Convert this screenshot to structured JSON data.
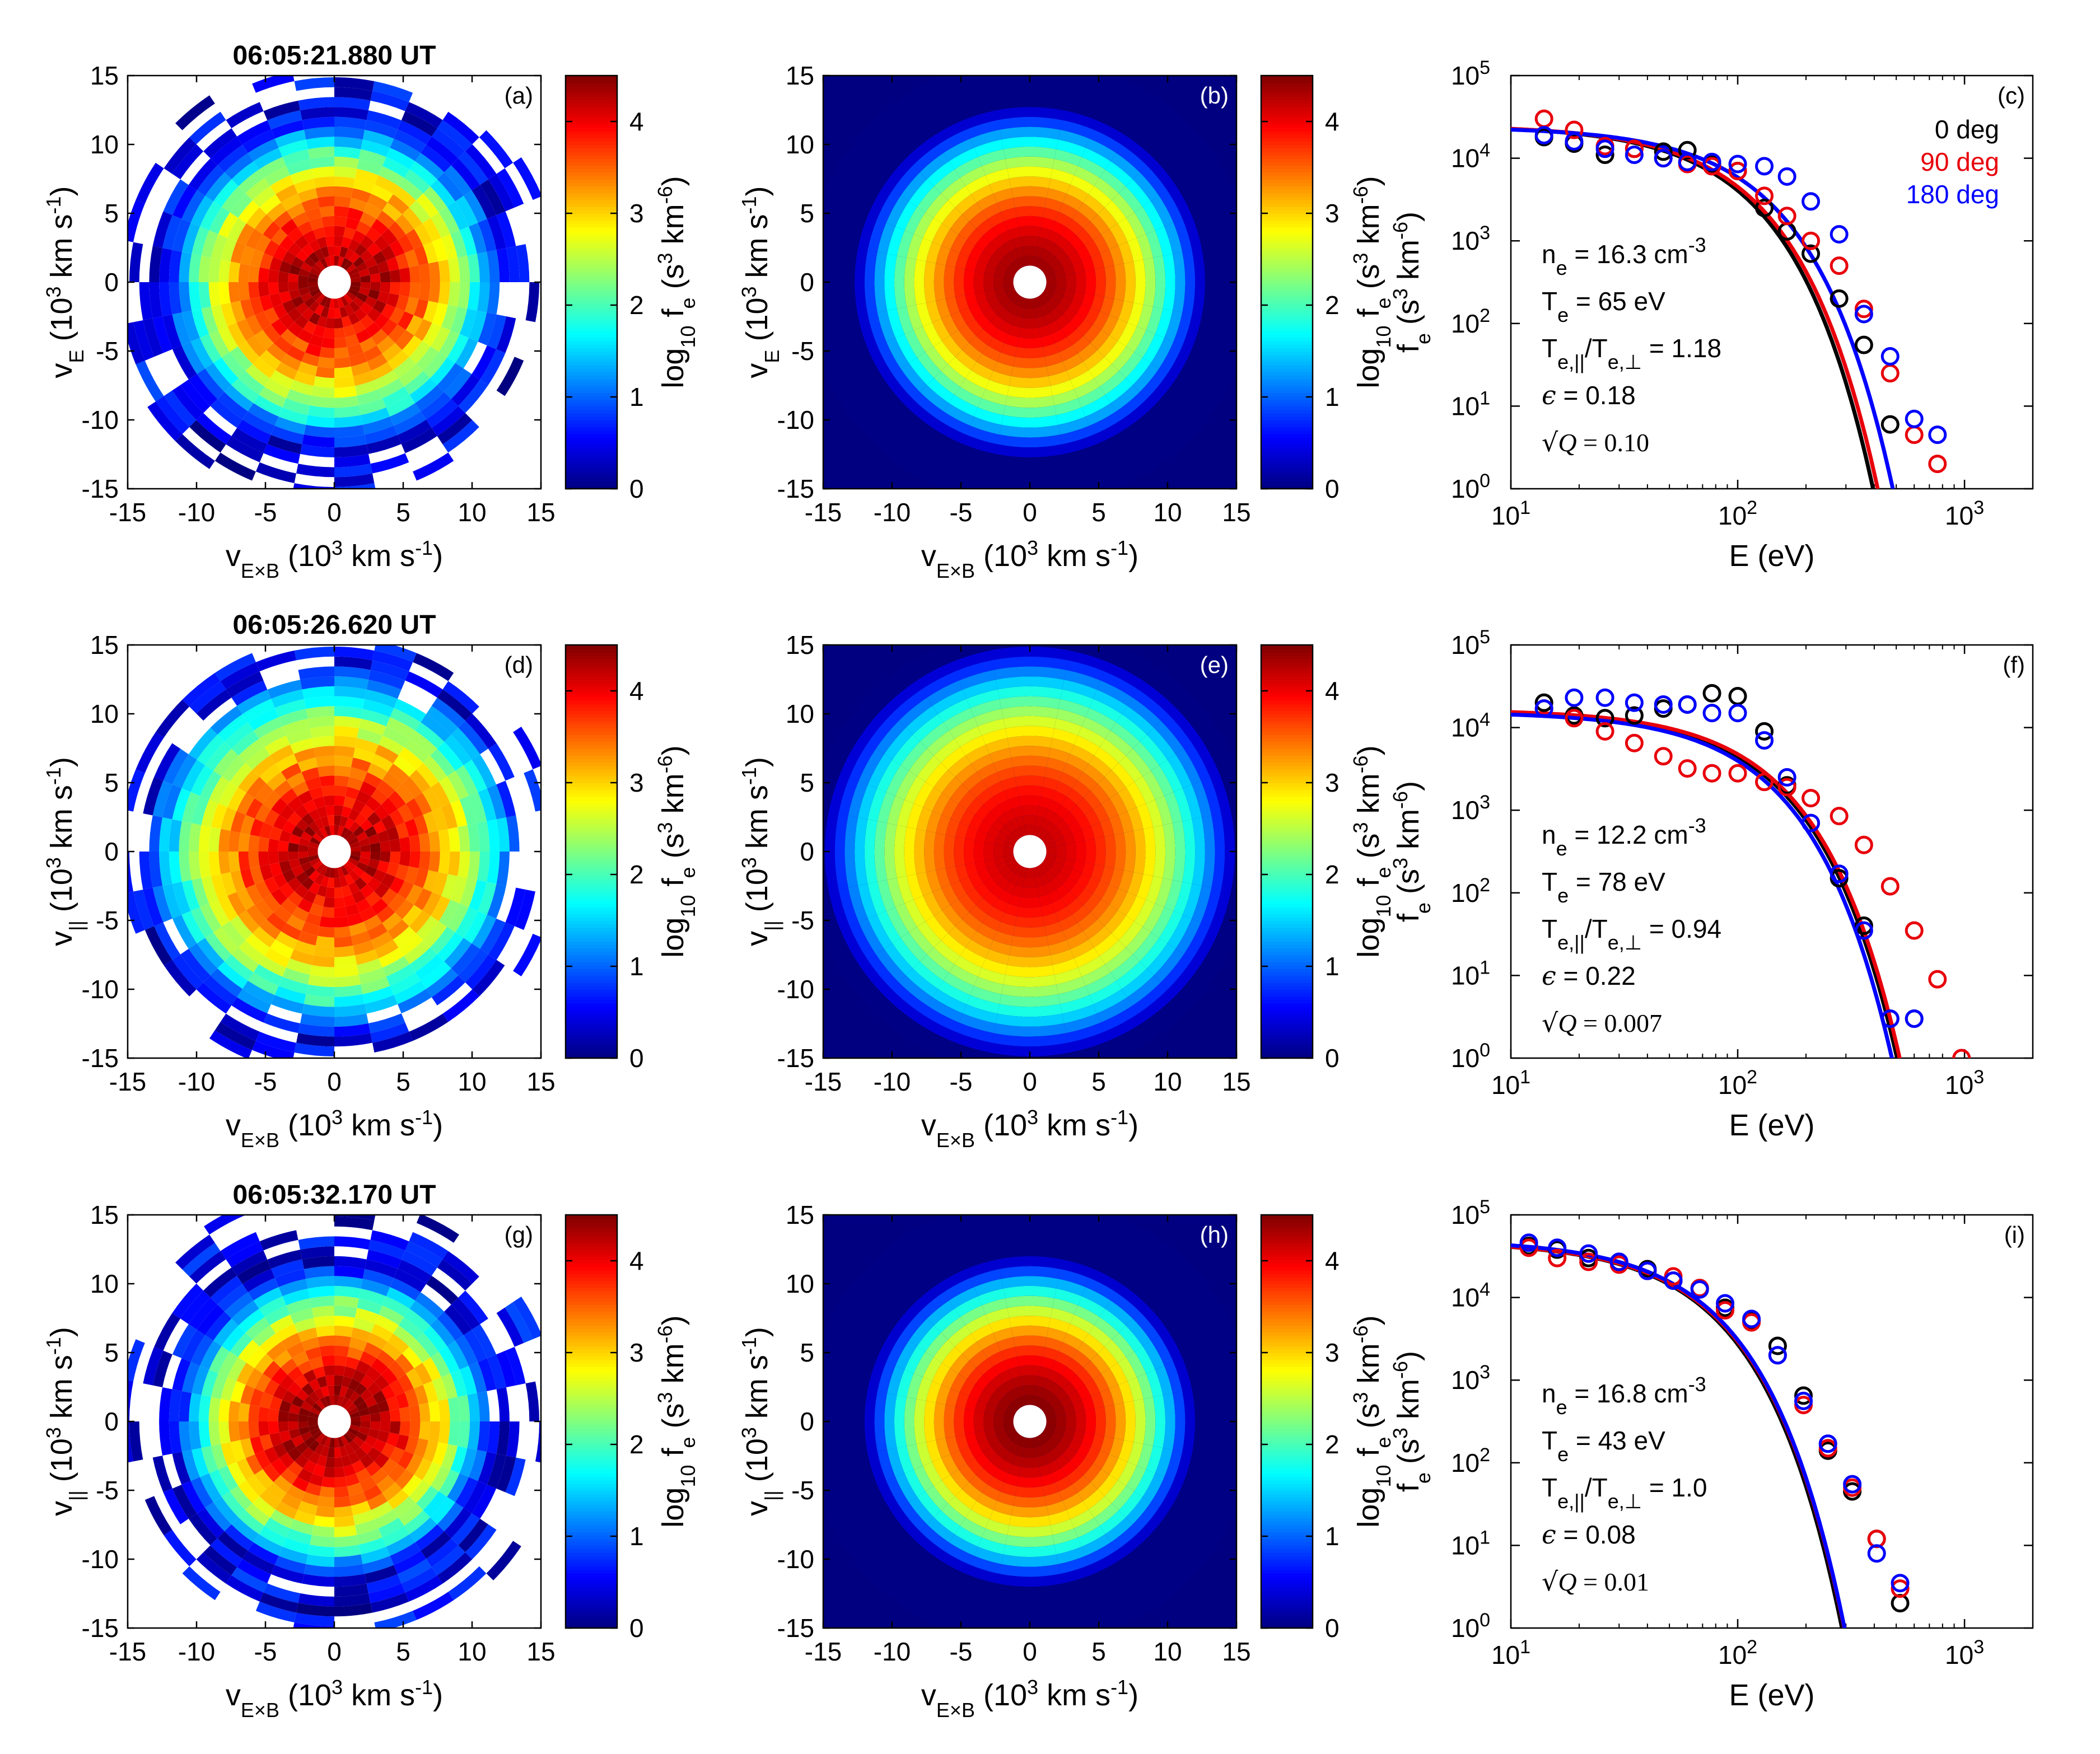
{
  "colors": {
    "series_0deg": "#000000",
    "series_90deg": "#e8000b",
    "series_180deg": "#0000ff",
    "colormap": "jet"
  },
  "legend": [
    "0 deg",
    "90 deg",
    "180 deg"
  ],
  "chart_data": [
    {
      "type": "heatmap",
      "panel": "(a)",
      "row": 0,
      "variant": "observed",
      "seed": 11,
      "title": "06:05:21.880 UT",
      "xlabel": "v_E×B (10^3 km s^-1)",
      "ylabel": "v_E (10^3 km s^-1)",
      "xlim": [
        -15,
        15
      ],
      "ylim": [
        -15,
        15
      ],
      "ticks": [
        -15,
        -10,
        -5,
        0,
        5,
        10,
        15
      ],
      "colorbar": {
        "label": "log10 fe (s^3 km^-6)",
        "range": [
          0,
          4.5
        ],
        "ticks": [
          0,
          1,
          2,
          3,
          4
        ]
      },
      "core_radius": 8.3,
      "peak_log10": 4.4
    },
    {
      "type": "heatmap",
      "panel": "(b)",
      "row": 0,
      "variant": "model",
      "xlabel": "v_E×B (10^3 km s^-1)",
      "ylabel": "v_E (10^3 km s^-1)",
      "xlim": [
        -15,
        15
      ],
      "ylim": [
        -15,
        15
      ],
      "ticks": [
        -15,
        -10,
        -5,
        0,
        5,
        10,
        15
      ],
      "colorbar": {
        "label": "log10 fe (s^3 km^-6)",
        "range": [
          0,
          4.5
        ],
        "ticks": [
          0,
          1,
          2,
          3,
          4
        ]
      },
      "core_radius": 8.3,
      "peak_log10": 4.4
    },
    {
      "type": "line",
      "panel": "(c)",
      "row": 0,
      "xlabel": "E (eV)",
      "ylabel": "fe (s^3 km^-6)",
      "xscale": "log",
      "yscale": "log",
      "xlim": [
        10,
        2000
      ],
      "ylim": [
        1,
        100000
      ],
      "x_ticks": [
        10,
        100,
        1000
      ],
      "y_ticks": [
        1,
        10,
        100,
        1000,
        10000,
        100000
      ],
      "params": {
        "ne": "16.3",
        "Te": "65",
        "Tratio": "1.18",
        "eps": "0.18",
        "sqrtQ": "0.10"
      },
      "fits": [
        {
          "name": "0 deg",
          "A": 25000,
          "T": 62,
          "n": 1.25
        },
        {
          "name": "90 deg",
          "A": 25000,
          "T": 65,
          "n": 1.25
        },
        {
          "name": "180 deg",
          "A": 24000,
          "T": 76,
          "n": 1.25
        }
      ],
      "series": [
        {
          "name": "0 deg",
          "x": [
            14,
            19,
            26,
            35,
            47,
            60,
            77,
            100,
            131,
            165,
            210,
            280,
            360,
            470
          ],
          "y": [
            18000,
            15000,
            11000,
            13000,
            12000,
            12500,
            8500,
            7000,
            2500,
            1300,
            700,
            200,
            55,
            6
          ]
        },
        {
          "name": "90 deg",
          "x": [
            14,
            19,
            26,
            35,
            47,
            60,
            77,
            100,
            131,
            165,
            210,
            280,
            360,
            470,
            600,
            760
          ],
          "y": [
            30000,
            22000,
            14000,
            13000,
            10000,
            8500,
            8000,
            7000,
            3500,
            2000,
            1000,
            500,
            150,
            25,
            4.5,
            2
          ]
        },
        {
          "name": "180 deg",
          "x": [
            14,
            19,
            26,
            35,
            47,
            60,
            77,
            100,
            131,
            165,
            210,
            280,
            360,
            470,
            600,
            760
          ],
          "y": [
            19000,
            16000,
            13000,
            11000,
            10000,
            9000,
            9000,
            8500,
            8000,
            6000,
            3000,
            1200,
            130,
            40,
            7,
            4.5
          ]
        }
      ]
    },
    {
      "type": "heatmap",
      "panel": "(d)",
      "row": 1,
      "variant": "observed",
      "seed": 23,
      "title": "06:05:26.620 UT",
      "xlabel": "v_E×B (10^3 km s^-1)",
      "ylabel": "v_|| (10^3 km s^-1)",
      "xlim": [
        -15,
        15
      ],
      "ylim": [
        -15,
        15
      ],
      "ticks": [
        -15,
        -10,
        -5,
        0,
        5,
        10,
        15
      ],
      "colorbar": {
        "label": "log10 fe (s^3 km^-6)",
        "range": [
          0,
          4.5
        ],
        "ticks": [
          0,
          1,
          2,
          3,
          4
        ]
      },
      "core_radius": 9.3,
      "peak_log10": 4.3
    },
    {
      "type": "heatmap",
      "panel": "(e)",
      "row": 1,
      "variant": "model",
      "xlabel": "v_E×B (10^3 km s^-1)",
      "ylabel": "v_|| (10^3 km s^-1)",
      "xlim": [
        -15,
        15
      ],
      "ylim": [
        -15,
        15
      ],
      "ticks": [
        -15,
        -10,
        -5,
        0,
        5,
        10,
        15
      ],
      "colorbar": {
        "label": "log10 fe (s^3 km^-6)",
        "range": [
          0,
          4.5
        ],
        "ticks": [
          0,
          1,
          2,
          3,
          4
        ]
      },
      "core_radius": 9.8,
      "peak_log10": 4.2
    },
    {
      "type": "line",
      "panel": "(f)",
      "row": 1,
      "xlabel": "E (eV)",
      "ylabel": "fe (s^3 km^-6)",
      "xscale": "log",
      "yscale": "log",
      "xlim": [
        10,
        2000
      ],
      "ylim": [
        1,
        100000
      ],
      "x_ticks": [
        10,
        100,
        1000
      ],
      "y_ticks": [
        1,
        10,
        100,
        1000,
        10000,
        100000
      ],
      "params": {
        "ne": "12.2",
        "Te": "78",
        "Tratio": "0.94",
        "eps": "0.22",
        "sqrtQ": "0.007"
      },
      "fits": [
        {
          "name": "0 deg",
          "A": 16000,
          "T": 82,
          "n": 1.25
        },
        {
          "name": "90 deg",
          "A": 16500,
          "T": 84,
          "n": 1.25
        },
        {
          "name": "180 deg",
          "A": 15500,
          "T": 78,
          "n": 1.25
        }
      ],
      "series": [
        {
          "name": "0 deg",
          "x": [
            14,
            19,
            26,
            35,
            47,
            60,
            77,
            100,
            131,
            165,
            280,
            360,
            470,
            600
          ],
          "y": [
            20000,
            14000,
            13000,
            14000,
            17000,
            19000,
            26000,
            24000,
            9000,
            2000,
            150,
            40,
            3,
            3
          ]
        },
        {
          "name": "90 deg",
          "x": [
            14,
            19,
            26,
            35,
            47,
            60,
            77,
            100,
            131,
            165,
            210,
            280,
            360,
            470,
            600,
            760,
            970
          ],
          "y": [
            17000,
            13000,
            9000,
            6500,
            4500,
            3200,
            2800,
            2800,
            2200,
            1900,
            1400,
            850,
            380,
            120,
            35,
            9,
            1
          ]
        },
        {
          "name": "180 deg",
          "x": [
            14,
            19,
            26,
            35,
            47,
            60,
            77,
            100,
            131,
            165,
            210,
            280,
            360,
            470,
            600
          ],
          "y": [
            17000,
            23000,
            23000,
            20000,
            19000,
            19000,
            15000,
            15000,
            7000,
            2500,
            700,
            170,
            35,
            3,
            3
          ]
        }
      ]
    },
    {
      "type": "heatmap",
      "panel": "(g)",
      "row": 2,
      "variant": "observed",
      "seed": 37,
      "title": "06:05:32.170 UT",
      "xlabel": "v_E×B (10^3 km s^-1)",
      "ylabel": "v_|| (10^3 km s^-1)",
      "xlim": [
        -15,
        15
      ],
      "ylim": [
        -15,
        15
      ],
      "ticks": [
        -15,
        -10,
        -5,
        0,
        5,
        10,
        15
      ],
      "colorbar": {
        "label": "log10 fe (s^3 km^-6)",
        "range": [
          0,
          4.5
        ],
        "ticks": [
          0,
          1,
          2,
          3,
          4
        ]
      },
      "core_radius": 7.8,
      "peak_log10": 4.5
    },
    {
      "type": "heatmap",
      "panel": "(h)",
      "row": 2,
      "variant": "model",
      "xlabel": "v_E×B (10^3 km s^-1)",
      "ylabel": "v_|| (10^3 km s^-1)",
      "xlim": [
        -15,
        15
      ],
      "ylim": [
        -15,
        15
      ],
      "ticks": [
        -15,
        -10,
        -5,
        0,
        5,
        10,
        15
      ],
      "colorbar": {
        "label": "log10 fe (s^3 km^-6)",
        "range": [
          0,
          4.5
        ],
        "ticks": [
          0,
          1,
          2,
          3,
          4
        ]
      },
      "core_radius": 7.8,
      "peak_log10": 4.5
    },
    {
      "type": "line",
      "panel": "(i)",
      "row": 2,
      "xlabel": "E (eV)",
      "ylabel": "fe (s^3 km^-6)",
      "xscale": "log",
      "yscale": "log",
      "xlim": [
        10,
        2000
      ],
      "ylim": [
        1,
        100000
      ],
      "x_ticks": [
        10,
        100,
        1000
      ],
      "y_ticks": [
        1,
        10,
        100,
        1000,
        10000,
        100000
      ],
      "params": {
        "ne": "16.8",
        "Te": "43",
        "Tratio": "1.0",
        "eps": "0.08",
        "sqrtQ": "0.01"
      },
      "fits": [
        {
          "name": "0 deg",
          "A": 48000,
          "T": 43,
          "n": 1.25
        },
        {
          "name": "90 deg",
          "A": 48000,
          "T": 44,
          "n": 1.25
        },
        {
          "name": "180 deg",
          "A": 50000,
          "T": 44,
          "n": 1.25
        }
      ],
      "series": [
        {
          "name": "0 deg",
          "x": [
            12,
            16,
            22,
            30,
            40,
            52,
            68,
            88,
            115,
            150,
            195,
            250,
            320,
            410,
            520
          ],
          "y": [
            42000,
            38000,
            30000,
            27000,
            22000,
            16000,
            13000,
            7500,
            5200,
            2600,
            650,
            140,
            45,
            12,
            2
          ]
        },
        {
          "name": "90 deg",
          "x": [
            12,
            16,
            22,
            30,
            40,
            52,
            68,
            88,
            115,
            150,
            195,
            250,
            320,
            410,
            520
          ],
          "y": [
            40000,
            30000,
            27000,
            25000,
            21000,
            18000,
            13000,
            7000,
            5000,
            2000,
            500,
            150,
            50,
            12,
            3
          ]
        },
        {
          "name": "180 deg",
          "x": [
            12,
            16,
            22,
            30,
            40,
            52,
            68,
            88,
            115,
            150,
            195,
            250,
            320,
            410,
            520
          ],
          "y": [
            46000,
            40000,
            34000,
            27000,
            21000,
            16000,
            12500,
            8500,
            5500,
            2000,
            560,
            170,
            55,
            8,
            3.5
          ]
        }
      ]
    }
  ]
}
